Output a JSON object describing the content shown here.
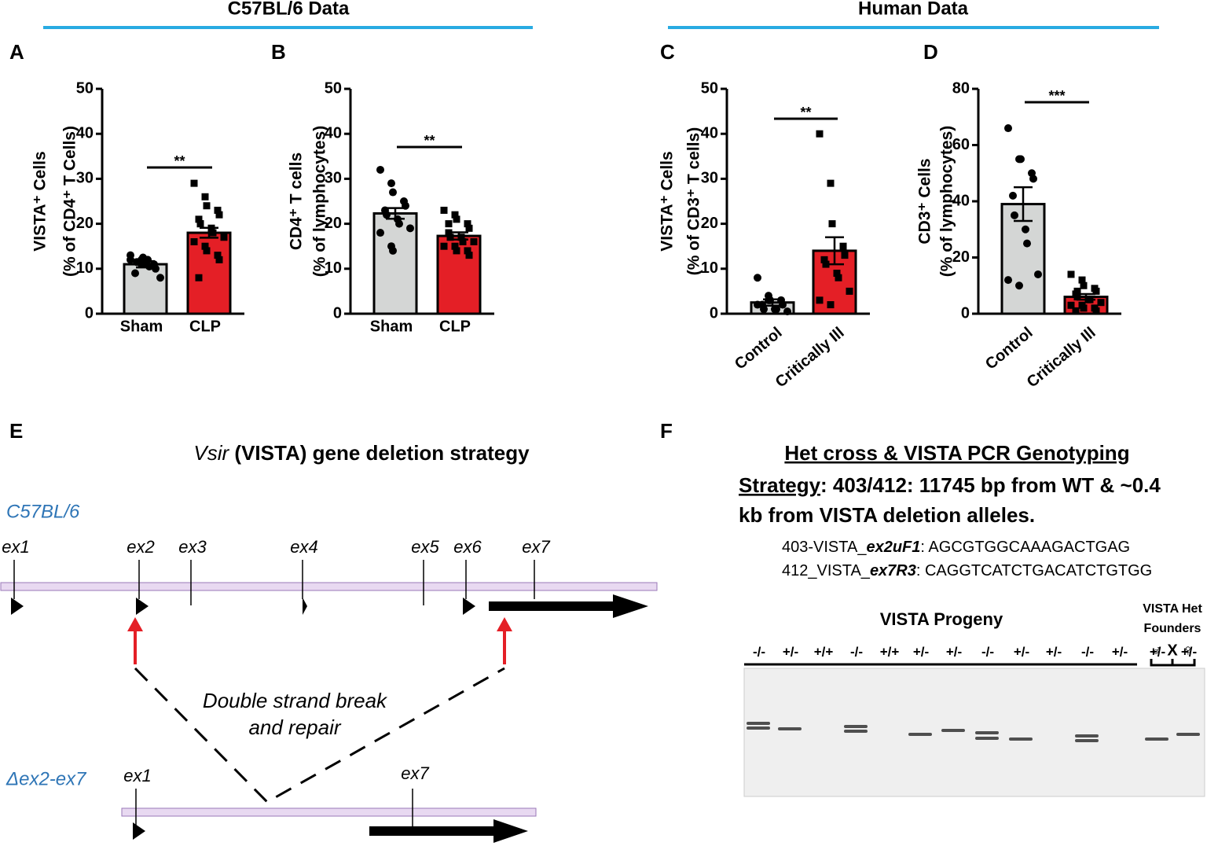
{
  "headers": [
    "C57BL/6 Data",
    "Human Data"
  ],
  "chart_data": [
    {
      "type": "bar",
      "panel": "A",
      "ylabel": [
        "VISTA⁺ Cells",
        "(% of CD4⁺ T Cells)"
      ],
      "categories": [
        "Sham",
        "CLP"
      ],
      "values": [
        11,
        18
      ],
      "errors": [
        0.7,
        1.1
      ],
      "points": [
        [
          13,
          12,
          12.5,
          11,
          10,
          9,
          11.5,
          12,
          10.5,
          8,
          12,
          11
        ],
        [
          29,
          26,
          24,
          23,
          22,
          21,
          20,
          19,
          18,
          17,
          16,
          15,
          14,
          13,
          12,
          8,
          20,
          19
        ]
      ],
      "colors": [
        "#d4d6d5",
        "#e41f26"
      ],
      "markers": [
        "circle",
        "square"
      ],
      "ylim": [
        0,
        50
      ],
      "yticks": [
        0,
        10,
        20,
        30,
        40,
        50
      ],
      "significance": "**"
    },
    {
      "type": "bar",
      "panel": "B",
      "ylabel": [
        "CD4⁺ T cells",
        "(% of lymphocytes)"
      ],
      "categories": [
        "Sham",
        "CLP"
      ],
      "values": [
        22.3,
        17.3
      ],
      "errors": [
        1.2,
        0.8
      ],
      "points": [
        [
          32,
          29,
          27,
          25,
          24,
          23,
          22,
          21,
          20,
          19,
          18,
          15,
          14
        ],
        [
          23,
          22,
          21,
          20,
          19,
          18,
          17,
          17,
          16,
          16,
          15,
          15,
          14,
          14,
          13,
          20
        ]
      ],
      "colors": [
        "#d4d6d5",
        "#e41f26"
      ],
      "markers": [
        "circle",
        "square"
      ],
      "ylim": [
        0,
        50
      ],
      "yticks": [
        0,
        10,
        20,
        30,
        40,
        50
      ],
      "significance": "**"
    },
    {
      "type": "bar",
      "panel": "C",
      "ylabel": [
        "VISTA⁺ Cells",
        "(% of CD3⁺ T cells)"
      ],
      "categories": [
        "Control",
        "Critically Ill"
      ],
      "values": [
        2.5,
        14
      ],
      "errors": [
        0.7,
        3
      ],
      "points": [
        [
          8,
          4,
          3,
          3,
          2,
          2,
          1,
          1,
          1,
          0.5,
          2,
          3
        ],
        [
          40,
          29,
          20,
          15,
          13,
          12,
          11,
          9,
          8,
          5,
          3,
          2
        ]
      ],
      "colors": [
        "#d4d6d5",
        "#e41f26"
      ],
      "markers": [
        "circle",
        "square"
      ],
      "ylim": [
        0,
        50
      ],
      "yticks": [
        0,
        10,
        20,
        30,
        40,
        50
      ],
      "significance": "**"
    },
    {
      "type": "bar",
      "panel": "D",
      "ylabel": [
        "CD3⁺ Cells",
        "(% of lymphocytes)"
      ],
      "categories": [
        "Control",
        "Critically Ill"
      ],
      "values": [
        39,
        6
      ],
      "errors": [
        6,
        1
      ],
      "points": [
        [
          66,
          55,
          55,
          50,
          48,
          42,
          35,
          30,
          25,
          14,
          12,
          10
        ],
        [
          14,
          12,
          10,
          9,
          8,
          7,
          6,
          5,
          5,
          4,
          3,
          3,
          2,
          2,
          1,
          1,
          8
        ]
      ],
      "colors": [
        "#d4d6d5",
        "#e41f26"
      ],
      "markers": [
        "circle",
        "square"
      ],
      "ylim": [
        0,
        80
      ],
      "yticks": [
        0,
        20,
        40,
        60,
        80
      ],
      "significance": "***"
    }
  ],
  "diagram": {
    "panel": "E",
    "title_italic": "Vsir",
    "title_rest": " (VISTA) gene deletion strategy",
    "wt_label": "C57BL/6",
    "wt_exons": [
      "ex1",
      "ex2",
      "ex3",
      "ex4",
      "ex5",
      "ex6",
      "ex7"
    ],
    "break_text": [
      "Double strand break",
      "and repair"
    ],
    "ko_label": "Δex2-ex7",
    "ko_exons": [
      "ex1",
      "ex7"
    ]
  },
  "gel": {
    "panel": "F",
    "title": "Het cross & VISTA PCR Genotyping",
    "strategy_label": "Strategy",
    "strategy_text": ": 403/412: 11745 bp from WT & ~0.4",
    "strategy_text2": "kb from VISTA deletion alleles.",
    "primers": [
      [
        "403-VISTA_",
        "ex2uF1",
        ": AGCGTGGCAAAGACTGAG"
      ],
      [
        "412_VISTA_",
        "ex7R3",
        ": CAGGTCATCTGACATCTGTGG"
      ]
    ],
    "progeny_label": "VISTA Progeny",
    "founders_label": [
      "VISTA Het",
      "Founders",
      "♂ X ♀"
    ],
    "lanes": [
      "-/-",
      "+/-",
      "+/+",
      "-/-",
      "+/+",
      "+/-",
      "+/-",
      "-/-",
      "+/-",
      "+/-",
      "-/-",
      "+/-",
      "+/-",
      "+/-"
    ]
  }
}
